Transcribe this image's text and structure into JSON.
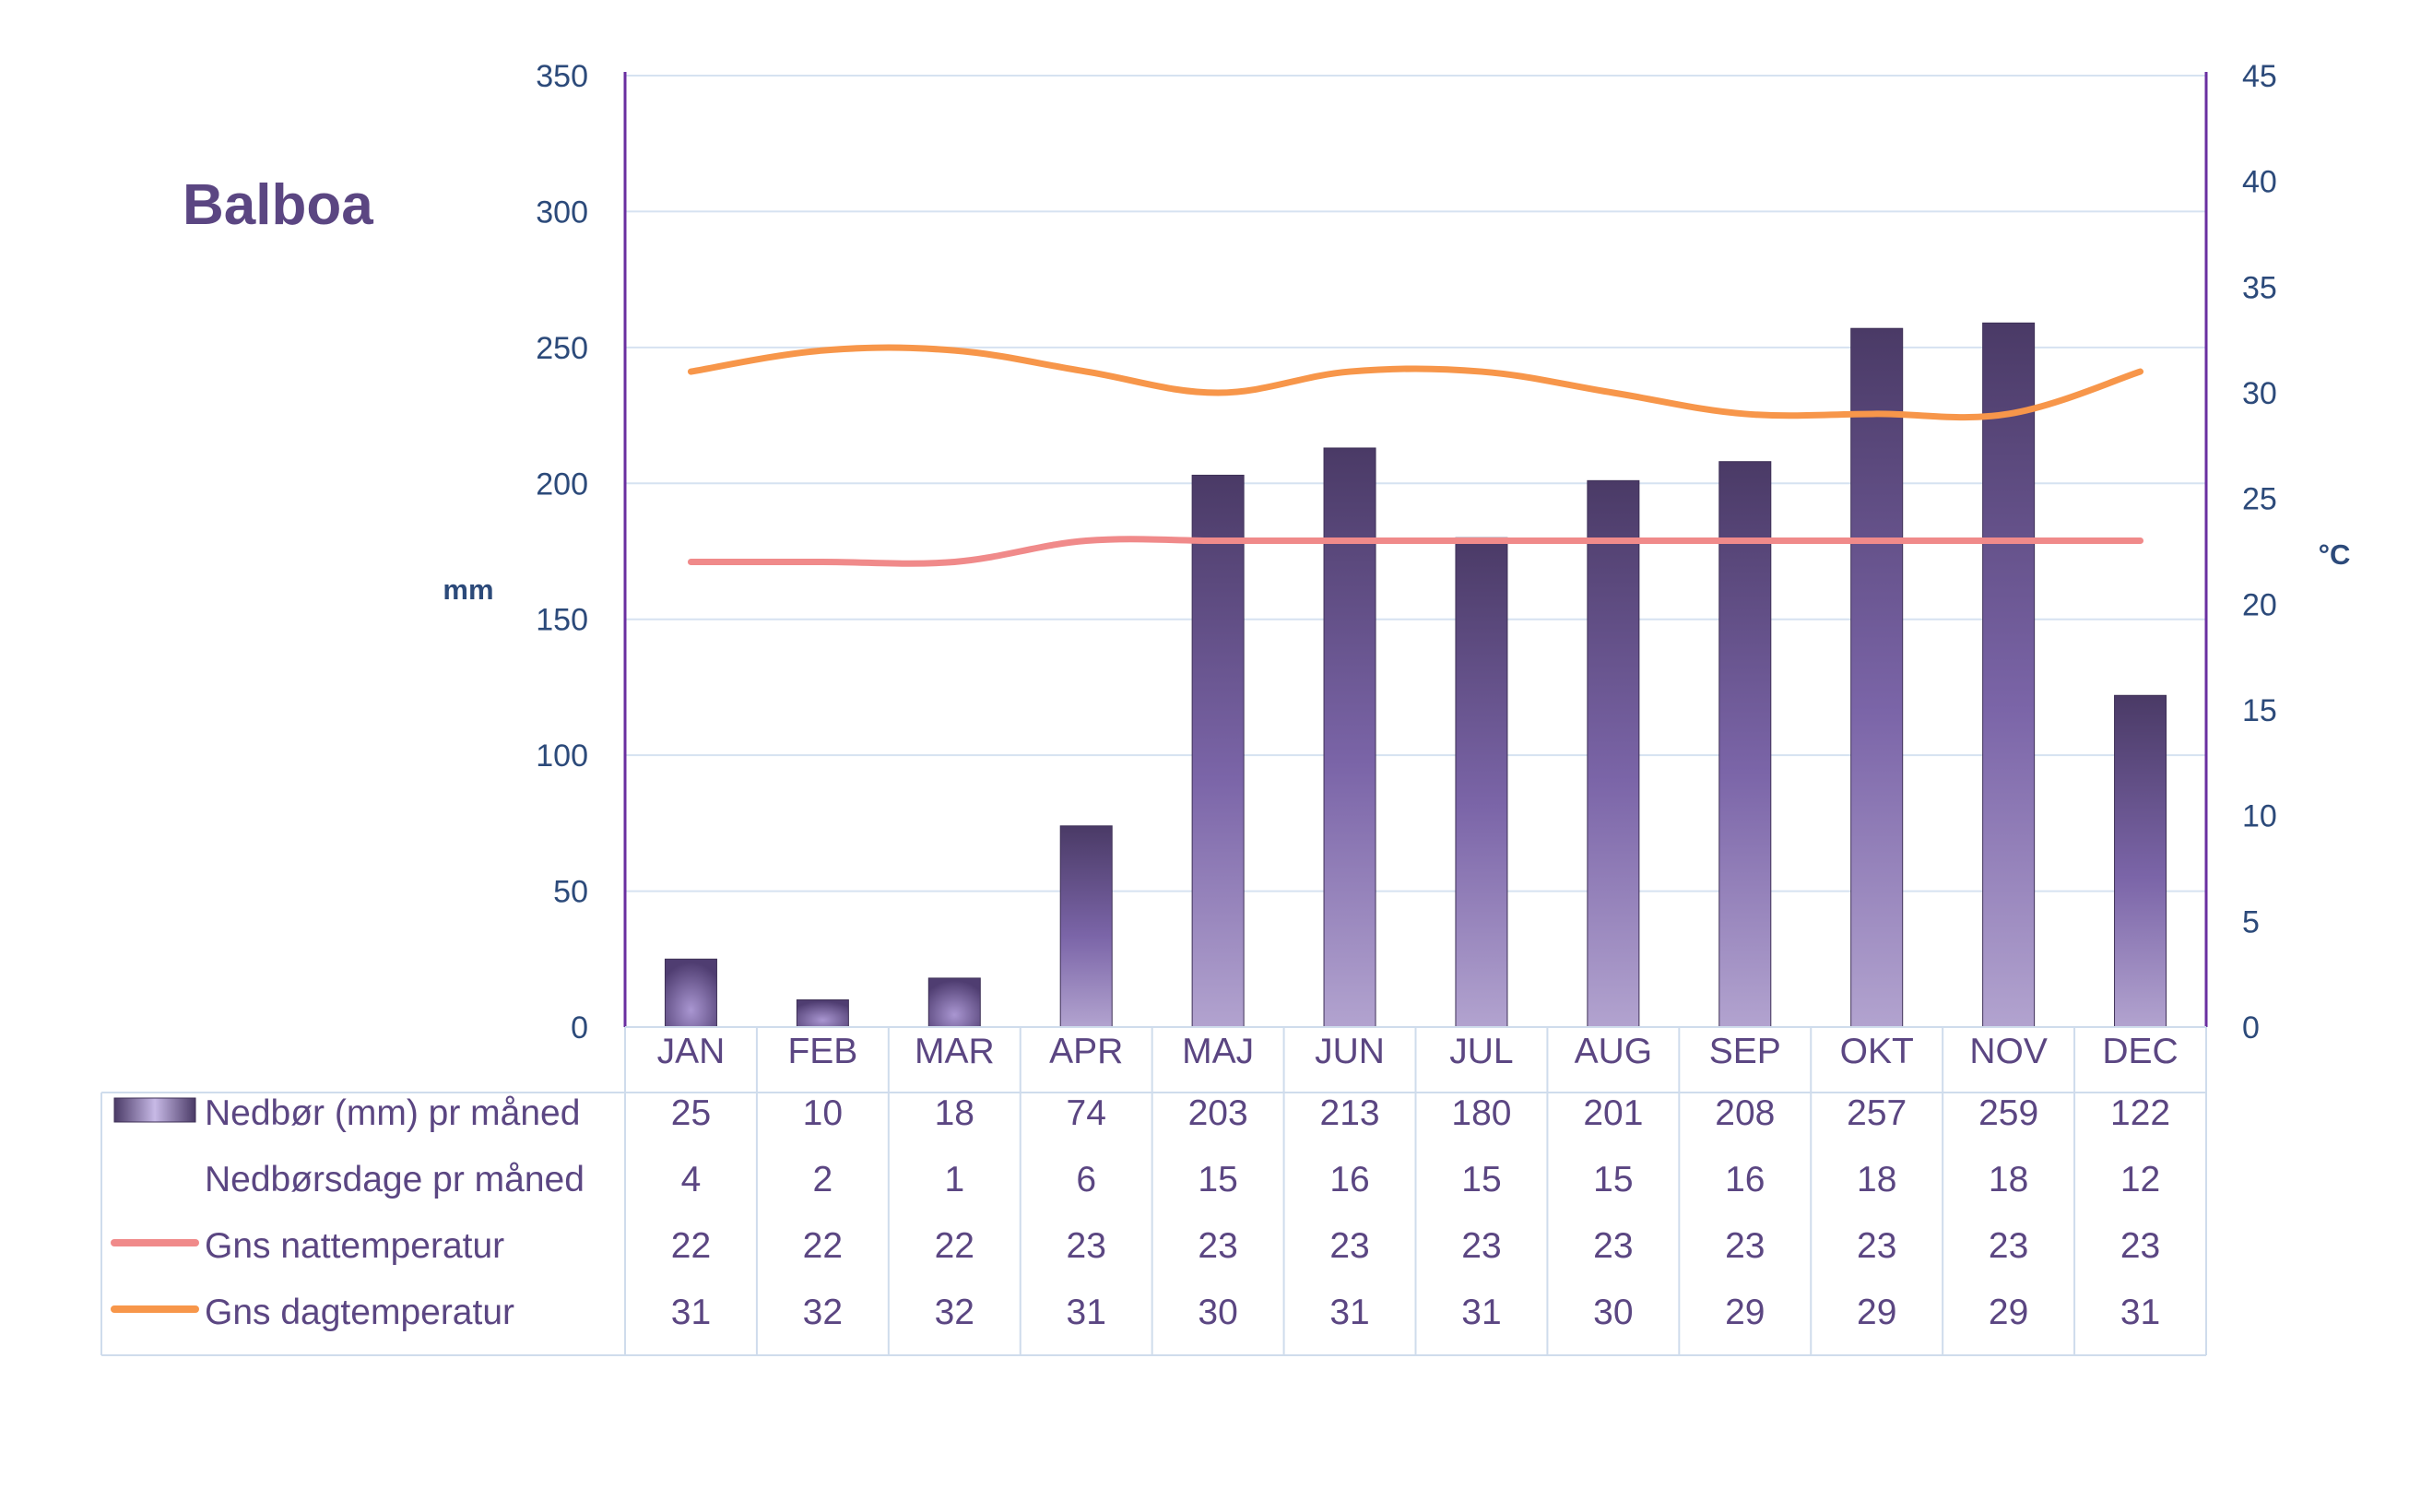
{
  "title": "Balboa",
  "chart_data": {
    "type": "bar",
    "title": "Balboa",
    "categories": [
      "JAN",
      "FEB",
      "MAR",
      "APR",
      "MAJ",
      "JUN",
      "JUL",
      "AUG",
      "SEP",
      "OKT",
      "NOV",
      "DEC"
    ],
    "y_left": {
      "label": "mm",
      "range": [
        0,
        350
      ],
      "ticks": [
        "0",
        "50",
        "100",
        "150",
        "200",
        "250",
        "300",
        "350"
      ]
    },
    "y_right": {
      "label": "°C",
      "range": [
        0,
        45
      ],
      "ticks": [
        "0",
        "5",
        "10",
        "15",
        "20",
        "25",
        "30",
        "35",
        "40",
        "45"
      ]
    },
    "grid": true,
    "legend_position": "data-table-below",
    "series": [
      {
        "name": "Nedbør (mm) pr måned",
        "type": "bar",
        "axis": "left",
        "color": "#5a4680",
        "values": [
          25,
          10,
          18,
          74,
          203,
          213,
          180,
          201,
          208,
          257,
          259,
          122
        ]
      },
      {
        "name": "Nedbørsdage pr måned",
        "type": "table-only",
        "values": [
          4,
          2,
          1,
          6,
          15,
          16,
          15,
          15,
          16,
          18,
          18,
          12
        ]
      },
      {
        "name": "Gns nattemperatur",
        "type": "line",
        "axis": "right",
        "color": "#f08a8a",
        "values": [
          22,
          22,
          22,
          23,
          23,
          23,
          23,
          23,
          23,
          23,
          23,
          23
        ]
      },
      {
        "name": "Gns dagtemperatur",
        "type": "line",
        "axis": "right",
        "color": "#f7964a",
        "values": [
          31,
          32,
          32,
          31,
          30,
          31,
          31,
          30,
          29,
          29,
          29,
          31
        ]
      }
    ]
  }
}
